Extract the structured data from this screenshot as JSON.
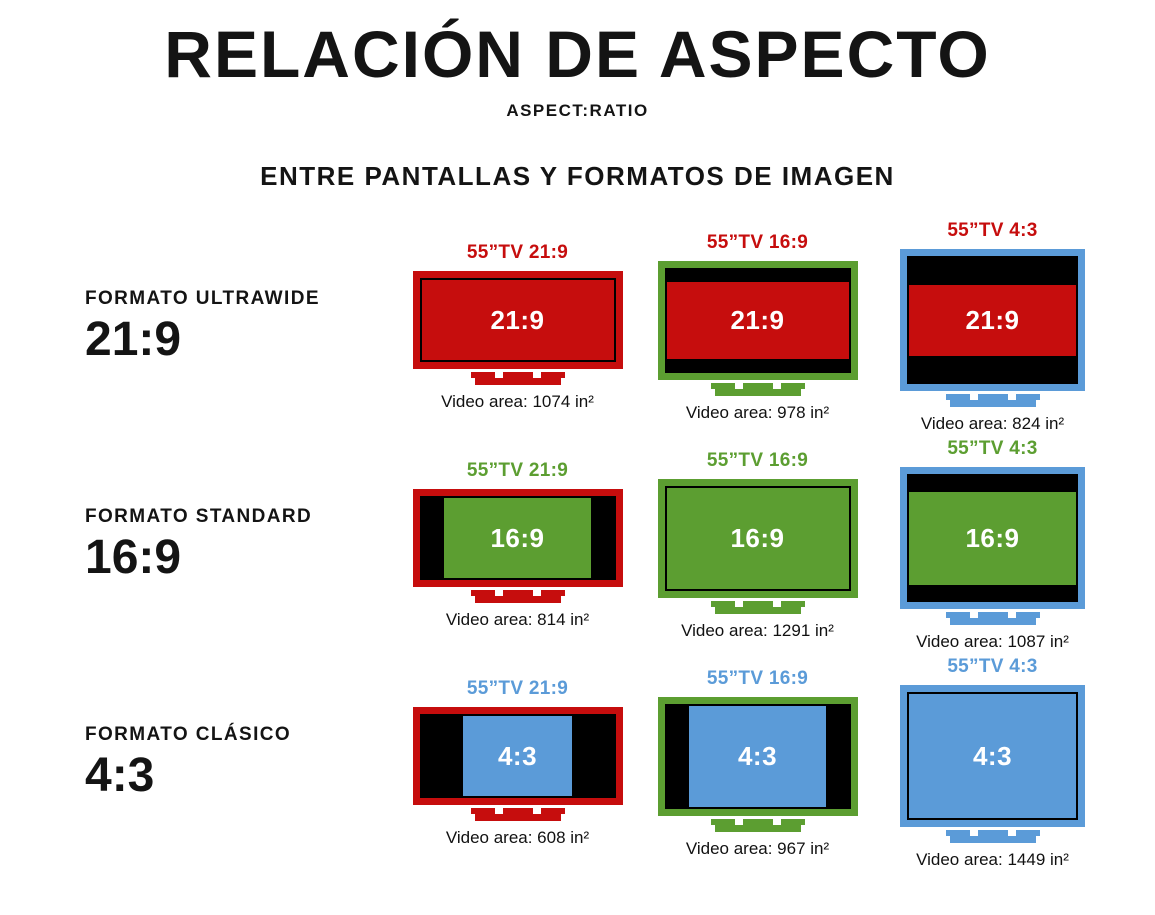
{
  "header": {
    "title": "RELACIÓN DE ASPECTO",
    "subtitle": "ASPECT:RATIO",
    "tagline": "ENTRE PANTALLAS Y FORMATOS DE IMAGEN"
  },
  "colors": {
    "red": "#c60d0d",
    "green": "#5c9e31",
    "blue": "#5b9bd8",
    "ink": "#141414"
  },
  "rows": [
    {
      "format_label": "FORMATO ULTRAWIDE",
      "format_ratio": "21:9",
      "cells": [
        {
          "tv_label": "55”TV 21:9",
          "content_ratio": "21:9",
          "video_area": "Video area: 1074 in²"
        },
        {
          "tv_label": "55”TV 16:9",
          "content_ratio": "21:9",
          "video_area": "Video area: 978 in²"
        },
        {
          "tv_label": "55”TV 4:3",
          "content_ratio": "21:9",
          "video_area": "Video area: 824 in²"
        }
      ]
    },
    {
      "format_label": "FORMATO STANDARD",
      "format_ratio": "16:9",
      "cells": [
        {
          "tv_label": "55”TV 21:9",
          "content_ratio": "16:9",
          "video_area": "Video area: 814 in²"
        },
        {
          "tv_label": "55”TV 16:9",
          "content_ratio": "16:9",
          "video_area": "Video area: 1291 in²"
        },
        {
          "tv_label": "55”TV 4:3",
          "content_ratio": "16:9",
          "video_area": "Video area: 1087 in²"
        }
      ]
    },
    {
      "format_label": "FORMATO CLÁSICO",
      "format_ratio": "4:3",
      "cells": [
        {
          "tv_label": "55”TV 21:9",
          "content_ratio": "4:3",
          "video_area": "Video area: 608 in²"
        },
        {
          "tv_label": "55”TV 16:9",
          "content_ratio": "4:3",
          "video_area": "Video area: 967 in²"
        },
        {
          "tv_label": "55”TV 4:3",
          "content_ratio": "4:3",
          "video_area": "Video area: 1449 in²"
        }
      ]
    }
  ]
}
